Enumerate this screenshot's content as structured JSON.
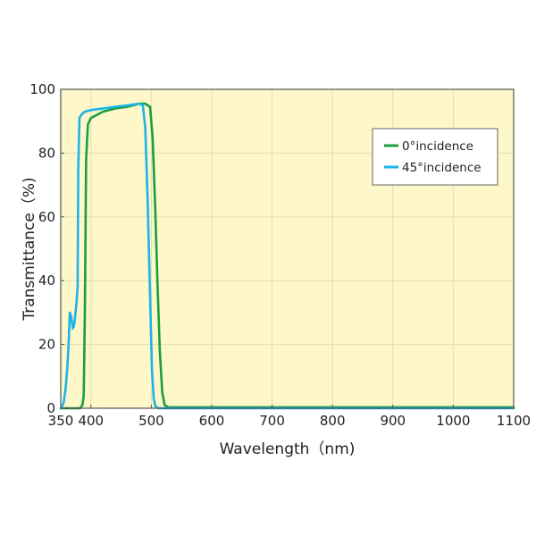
{
  "chart_data": {
    "type": "line",
    "title": "",
    "xlabel": "Wavelength（nm)",
    "ylabel": "Transmittance（%)",
    "xlim": [
      350,
      1100
    ],
    "ylim": [
      0,
      100
    ],
    "x_ticks": [
      "350",
      "400",
      "500",
      "600",
      "700",
      "800",
      "900",
      "1000",
      "1100"
    ],
    "y_ticks": [
      "0",
      "20",
      "40",
      "60",
      "80",
      "100"
    ],
    "grid": true,
    "legend_position": "top-right",
    "colors": {
      "plot_background": "#fdf7c9",
      "grid": "#e2ddb8",
      "frame": "#555555"
    },
    "series": [
      {
        "name": "0°incidence",
        "color": "#1a9e3f",
        "x": [
          350,
          370,
          382,
          386,
          388,
          390,
          392,
          395,
          400,
          420,
          440,
          460,
          480,
          490,
          498,
          502,
          506,
          510,
          514,
          518,
          522,
          528,
          540,
          1100
        ],
        "y": [
          0,
          0,
          0,
          1,
          4,
          30,
          78,
          89,
          91,
          93,
          94,
          94.5,
          95.5,
          95.5,
          94.5,
          85,
          65,
          40,
          18,
          5,
          1,
          0.3,
          0.3,
          0.3
        ]
      },
      {
        "name": "45°incidence",
        "color": "#1eb4e8",
        "x": [
          350,
          352,
          355,
          358,
          361,
          363,
          365,
          367,
          370,
          372,
          374,
          376,
          378,
          379,
          381,
          384,
          390,
          400,
          420,
          440,
          460,
          480,
          486,
          490,
          494,
          498,
          501,
          504,
          507,
          512,
          520,
          1100
        ],
        "y": [
          0,
          0.5,
          2,
          6,
          13,
          20,
          30,
          29,
          25,
          26,
          29,
          33,
          38,
          75,
          91,
          92,
          93,
          93.5,
          94,
          94.5,
          95,
          95.5,
          95,
          88,
          65,
          35,
          12,
          3,
          0.5,
          0,
          0,
          0
        ]
      }
    ]
  }
}
